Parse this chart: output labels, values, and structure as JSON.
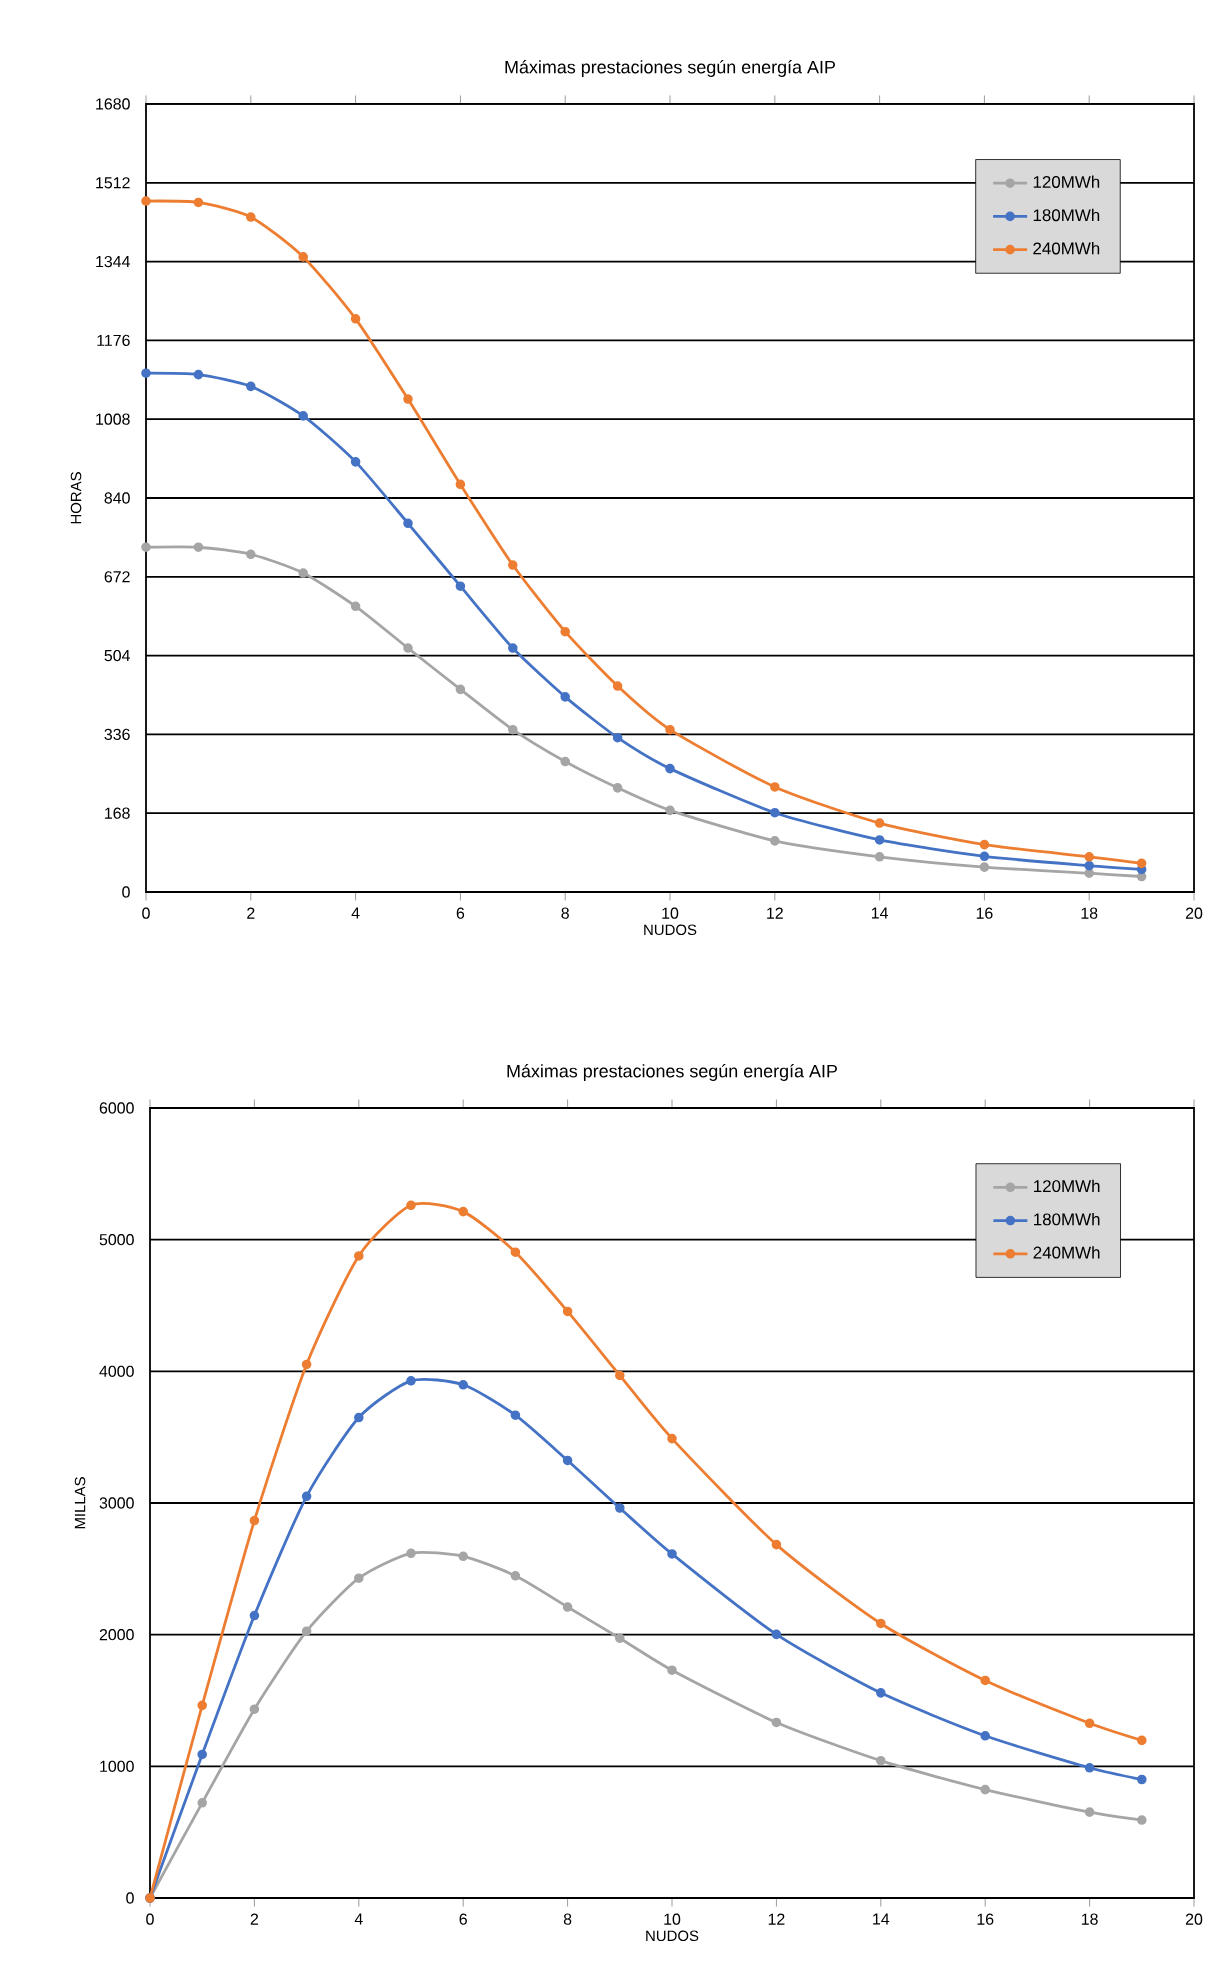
{
  "chart_data": [
    {
      "type": "line",
      "title": "Máximas prestaciones según energía AIP",
      "xlabel": "NUDOS",
      "ylabel": "HORAS",
      "x": [
        0,
        1,
        2,
        3,
        4,
        5,
        6,
        7,
        8,
        9,
        10,
        12,
        14,
        16,
        18,
        19
      ],
      "series": [
        {
          "name": "120MWh",
          "color": "#a5a5a5",
          "values": [
            735,
            735,
            720,
            680,
            609,
            520,
            432,
            346,
            278,
            222,
            174,
            109,
            75,
            53,
            40,
            33
          ]
        },
        {
          "name": "180MWh",
          "color": "#4472c4",
          "values": [
            1106,
            1103,
            1078,
            1015,
            917,
            786,
            652,
            520,
            416,
            329,
            263,
            169,
            111,
            76,
            56,
            48
          ]
        },
        {
          "name": "240MWh",
          "color": "#ed7d31",
          "values": [
            1473,
            1470,
            1439,
            1354,
            1222,
            1051,
            869,
            697,
            555,
            439,
            346,
            224,
            147,
            101,
            75,
            61
          ]
        }
      ],
      "xlim": [
        0,
        20
      ],
      "xticks": [
        0,
        2,
        4,
        6,
        8,
        10,
        12,
        14,
        16,
        18,
        20
      ],
      "ylim": [
        0,
        1680
      ],
      "yticks": [
        0,
        168,
        336,
        504,
        672,
        840,
        1008,
        1176,
        1344,
        1512,
        1680
      ],
      "grid": "y",
      "legend": "top right",
      "marker": "circle",
      "line_style": "solid"
    },
    {
      "type": "line",
      "title": "Máximas prestaciones según energía AIP",
      "xlabel": "NUDOS",
      "ylabel": "MILLAS",
      "x": [
        0,
        1,
        2,
        3,
        4,
        5,
        6,
        7,
        8,
        9,
        10,
        12,
        14,
        16,
        18,
        19
      ],
      "series": [
        {
          "name": "120MWh",
          "color": "#a5a5a5",
          "values": [
            0,
            723,
            1434,
            2026,
            2429,
            2618,
            2595,
            2447,
            2210,
            1973,
            1730,
            1333,
            1043,
            823,
            652,
            592
          ]
        },
        {
          "name": "180MWh",
          "color": "#4472c4",
          "values": [
            0,
            1090,
            2145,
            3051,
            3649,
            3928,
            3898,
            3667,
            3323,
            2962,
            2613,
            2002,
            1558,
            1232,
            989,
            900
          ]
        },
        {
          "name": "240MWh",
          "color": "#ed7d31",
          "values": [
            0,
            1463,
            2867,
            4052,
            4876,
            5261,
            5213,
            4905,
            4455,
            3969,
            3489,
            2684,
            2085,
            1652,
            1327,
            1197
          ]
        }
      ],
      "xlim": [
        0,
        20
      ],
      "xticks": [
        0,
        2,
        4,
        6,
        8,
        10,
        12,
        14,
        16,
        18,
        20
      ],
      "ylim": [
        0,
        6000
      ],
      "yticks": [
        0,
        1000,
        2000,
        3000,
        4000,
        5000,
        6000
      ],
      "grid": "y",
      "legend": "top right",
      "marker": "circle",
      "line_style": "solid"
    }
  ]
}
